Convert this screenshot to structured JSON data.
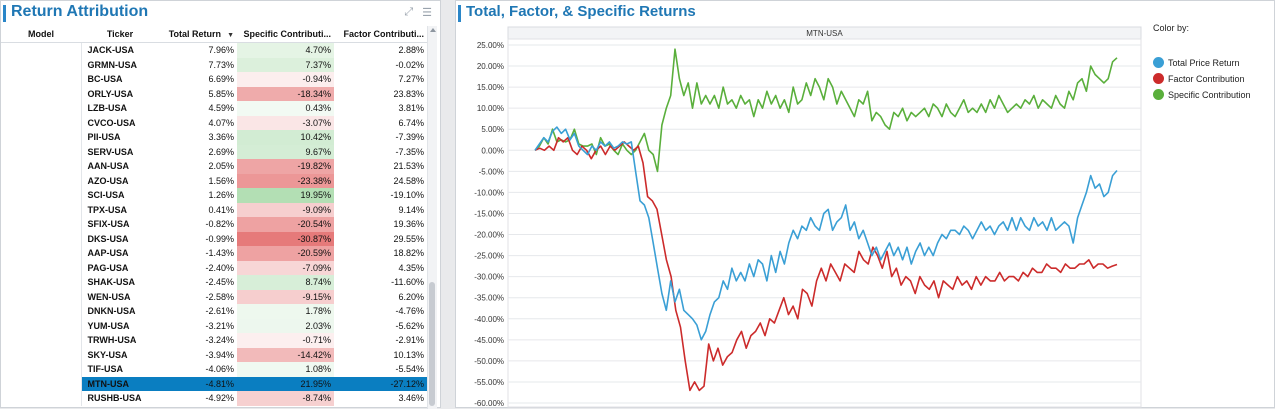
{
  "left_panel": {
    "title": "Return Attribution",
    "tools": {
      "expand_glyph": "⤢",
      "menu_glyph": "☰"
    }
  },
  "table": {
    "columns": {
      "model": "Model",
      "ticker": "Ticker",
      "total_return": "Total Return",
      "specific": "Specific Contributi...",
      "factor": "Factor Contributi..."
    },
    "sort_indicator": "▼",
    "rows": [
      {
        "ticker": "JACK-USA",
        "total": "7.96%",
        "specific": "4.70%",
        "factor": "2.88%",
        "spec_val": 4.7
      },
      {
        "ticker": "GRMN-USA",
        "total": "7.73%",
        "specific": "7.37%",
        "factor": "-0.02%",
        "spec_val": 7.37
      },
      {
        "ticker": "BC-USA",
        "total": "6.69%",
        "specific": "-0.94%",
        "factor": "7.27%",
        "spec_val": -0.94
      },
      {
        "ticker": "ORLY-USA",
        "total": "5.85%",
        "specific": "-18.34%",
        "factor": "23.83%",
        "spec_val": -18.34
      },
      {
        "ticker": "LZB-USA",
        "total": "4.59%",
        "specific": "0.43%",
        "factor": "3.81%",
        "spec_val": 0.43
      },
      {
        "ticker": "CVCO-USA",
        "total": "4.07%",
        "specific": "-3.07%",
        "factor": "6.74%",
        "spec_val": -3.07
      },
      {
        "ticker": "PII-USA",
        "total": "3.36%",
        "specific": "10.42%",
        "factor": "-7.39%",
        "spec_val": 10.42
      },
      {
        "ticker": "SERV-USA",
        "total": "2.69%",
        "specific": "9.67%",
        "factor": "-7.35%",
        "spec_val": 9.67
      },
      {
        "ticker": "AAN-USA",
        "total": "2.05%",
        "specific": "-19.82%",
        "factor": "21.53%",
        "spec_val": -19.82
      },
      {
        "ticker": "AZO-USA",
        "total": "1.56%",
        "specific": "-23.38%",
        "factor": "24.58%",
        "spec_val": -23.38
      },
      {
        "ticker": "SCI-USA",
        "total": "1.26%",
        "specific": "19.95%",
        "factor": "-19.10%",
        "spec_val": 19.95
      },
      {
        "ticker": "TPX-USA",
        "total": "0.41%",
        "specific": "-9.09%",
        "factor": "9.14%",
        "spec_val": -9.09
      },
      {
        "ticker": "SFIX-USA",
        "total": "-0.82%",
        "specific": "-20.54%",
        "factor": "19.36%",
        "spec_val": -20.54
      },
      {
        "ticker": "DKS-USA",
        "total": "-0.99%",
        "specific": "-30.87%",
        "factor": "29.55%",
        "spec_val": -30.87
      },
      {
        "ticker": "AAP-USA",
        "total": "-1.43%",
        "specific": "-20.59%",
        "factor": "18.82%",
        "spec_val": -20.59
      },
      {
        "ticker": "PAG-USA",
        "total": "-2.40%",
        "specific": "-7.09%",
        "factor": "4.35%",
        "spec_val": -7.09
      },
      {
        "ticker": "SHAK-USA",
        "total": "-2.45%",
        "specific": "8.74%",
        "factor": "-11.60%",
        "spec_val": 8.74
      },
      {
        "ticker": "WEN-USA",
        "total": "-2.58%",
        "specific": "-9.15%",
        "factor": "6.20%",
        "spec_val": -9.15
      },
      {
        "ticker": "DNKN-USA",
        "total": "-2.61%",
        "specific": "1.78%",
        "factor": "-4.76%",
        "spec_val": 1.78
      },
      {
        "ticker": "YUM-USA",
        "total": "-3.21%",
        "specific": "2.03%",
        "factor": "-5.62%",
        "spec_val": 2.03
      },
      {
        "ticker": "TRWH-USA",
        "total": "-3.24%",
        "specific": "-0.71%",
        "factor": "-2.91%",
        "spec_val": -0.71
      },
      {
        "ticker": "SKY-USA",
        "total": "-3.94%",
        "specific": "-14.42%",
        "factor": "10.13%",
        "spec_val": -14.42
      },
      {
        "ticker": "TIF-USA",
        "total": "-4.06%",
        "specific": "1.08%",
        "factor": "-5.54%",
        "spec_val": 1.08
      },
      {
        "ticker": "MTN-USA",
        "total": "-4.81%",
        "specific": "21.95%",
        "factor": "-27.12%",
        "spec_val": 21.95,
        "selected": true
      },
      {
        "ticker": "RUSHB-USA",
        "total": "-4.92%",
        "specific": "-8.74%",
        "factor": "3.46%",
        "spec_val": -8.74
      }
    ],
    "heat_colors": {
      "positive": "#74c476",
      "negative": "#e05a5a"
    }
  },
  "right_panel": {
    "title": "Total, Factor, & Specific Returns",
    "legend": {
      "title": "Color by:",
      "items": [
        {
          "label": "Total Price Return",
          "color": "#3a9fd5"
        },
        {
          "label": "Factor Contribution",
          "color": "#cc2b2b"
        },
        {
          "label": "Specific Contribution",
          "color": "#5aaf3c"
        }
      ]
    }
  },
  "chart_data": {
    "type": "line",
    "title": "MTN-USA",
    "ylim": [
      -60,
      25
    ],
    "yticks": [
      "25.00%",
      "20.00%",
      "15.00%",
      "10.00%",
      "5.00%",
      "0.00%",
      "-5.00%",
      "-10.00%",
      "-15.00%",
      "-20.00%",
      "-25.00%",
      "-30.00%",
      "-35.00%",
      "-40.00%",
      "-45.00%",
      "-50.00%",
      "-55.00%",
      "-60.00%"
    ],
    "grid": true,
    "series": [
      {
        "name": "Total Price Return",
        "color": "#3a9fd5",
        "values": [
          0,
          1.5,
          3,
          2,
          4.5,
          5.5,
          4,
          5,
          2.5,
          4,
          1,
          0,
          -1,
          1,
          0,
          2,
          1,
          2,
          0.5,
          1,
          2,
          1.5,
          2,
          -5,
          -12,
          -13,
          -16,
          -22,
          -28,
          -34,
          -38,
          -31,
          -36,
          -33,
          -38,
          -39,
          -40,
          -41.5,
          -45,
          -43,
          -39,
          -36,
          -35,
          -31,
          -33,
          -28,
          -31,
          -29,
          -31,
          -27,
          -30,
          -26,
          -27,
          -31,
          -25,
          -29,
          -24,
          -27,
          -22,
          -19,
          -21,
          -18,
          -19,
          -16,
          -18,
          -19,
          -15,
          -14,
          -19,
          -17,
          -16,
          -13,
          -19,
          -17,
          -21,
          -19,
          -22,
          -25,
          -23,
          -26,
          -24,
          -22,
          -25,
          -23,
          -26,
          -23,
          -27,
          -24,
          -22,
          -25,
          -23,
          -25,
          -22,
          -20,
          -21,
          -19,
          -19,
          -20,
          -18,
          -19,
          -21,
          -19,
          -17,
          -19,
          -18,
          -20,
          -18,
          -17,
          -19,
          -16,
          -19,
          -16,
          -18,
          -19,
          -16,
          -18,
          -17,
          -19,
          -16,
          -19,
          -18,
          -17,
          -18,
          -22,
          -16,
          -13,
          -10,
          -6,
          -9,
          -8,
          -11,
          -10,
          -6,
          -4.8
        ]
      },
      {
        "name": "Factor Contribution",
        "color": "#cc2b2b",
        "values": [
          0,
          0.5,
          0,
          1,
          0,
          3,
          2,
          3,
          0,
          -1,
          1,
          0,
          -2,
          0,
          1,
          -1,
          1,
          0,
          1,
          2,
          1,
          0,
          1,
          -3,
          -11,
          -12,
          -14,
          -20,
          -26,
          -30,
          -38,
          -42,
          -50,
          -57,
          -55,
          -57,
          -56,
          -46,
          -50,
          -47,
          -51,
          -49,
          -48,
          -45,
          -43,
          -47,
          -44,
          -43,
          -41,
          -44,
          -40,
          -41,
          -38,
          -35,
          -39,
          -37,
          -40,
          -33,
          -34,
          -37,
          -31,
          -28,
          -31,
          -27,
          -29,
          -31,
          -27,
          -28,
          -29,
          -24,
          -26,
          -27,
          -23,
          -25,
          -28,
          -24,
          -30,
          -28,
          -32,
          -30,
          -31,
          -34,
          -30,
          -32,
          -33,
          -31,
          -35,
          -31,
          -32,
          -33,
          -30,
          -32,
          -31,
          -33,
          -30,
          -32,
          -30,
          -31,
          -31,
          -29,
          -31,
          -30,
          -30,
          -31,
          -29,
          -30,
          -28,
          -29,
          -29,
          -27,
          -28,
          -28,
          -29,
          -27,
          -28,
          -28,
          -27,
          -27,
          -26,
          -28,
          -27,
          -27,
          -28,
          -27.5,
          -27.12
        ]
      },
      {
        "name": "Specific Contribution",
        "color": "#5aaf3c",
        "values": [
          0,
          1,
          3,
          1.5,
          5,
          2,
          2.5,
          2,
          2.5,
          5,
          1.5,
          1,
          1,
          1.5,
          -1,
          3,
          1,
          1.5,
          0,
          -1,
          1.5,
          0,
          -1,
          0,
          2,
          4,
          0,
          -1,
          -5,
          6,
          10,
          13,
          24,
          17,
          13,
          16,
          10,
          16,
          11,
          13,
          11,
          13,
          10,
          15,
          11,
          12,
          10,
          13,
          11,
          12,
          8,
          12,
          10,
          14,
          11,
          13,
          10,
          12,
          9,
          15,
          11,
          12,
          16,
          13,
          17,
          15,
          12,
          17,
          15,
          11,
          14,
          12,
          10,
          8,
          12,
          11,
          14,
          7,
          9,
          8,
          6,
          5,
          9,
          8,
          10,
          7,
          9,
          8,
          9,
          10,
          8,
          11,
          10,
          8,
          11,
          9,
          8,
          10,
          12,
          9,
          10,
          9,
          11,
          9,
          12,
          10,
          13,
          11,
          9,
          10,
          11,
          10,
          12,
          11,
          13,
          10,
          12,
          11,
          10,
          13,
          11,
          10,
          14,
          12,
          16,
          17,
          14,
          20,
          18,
          17,
          16,
          17,
          21,
          21.95
        ]
      }
    ]
  }
}
